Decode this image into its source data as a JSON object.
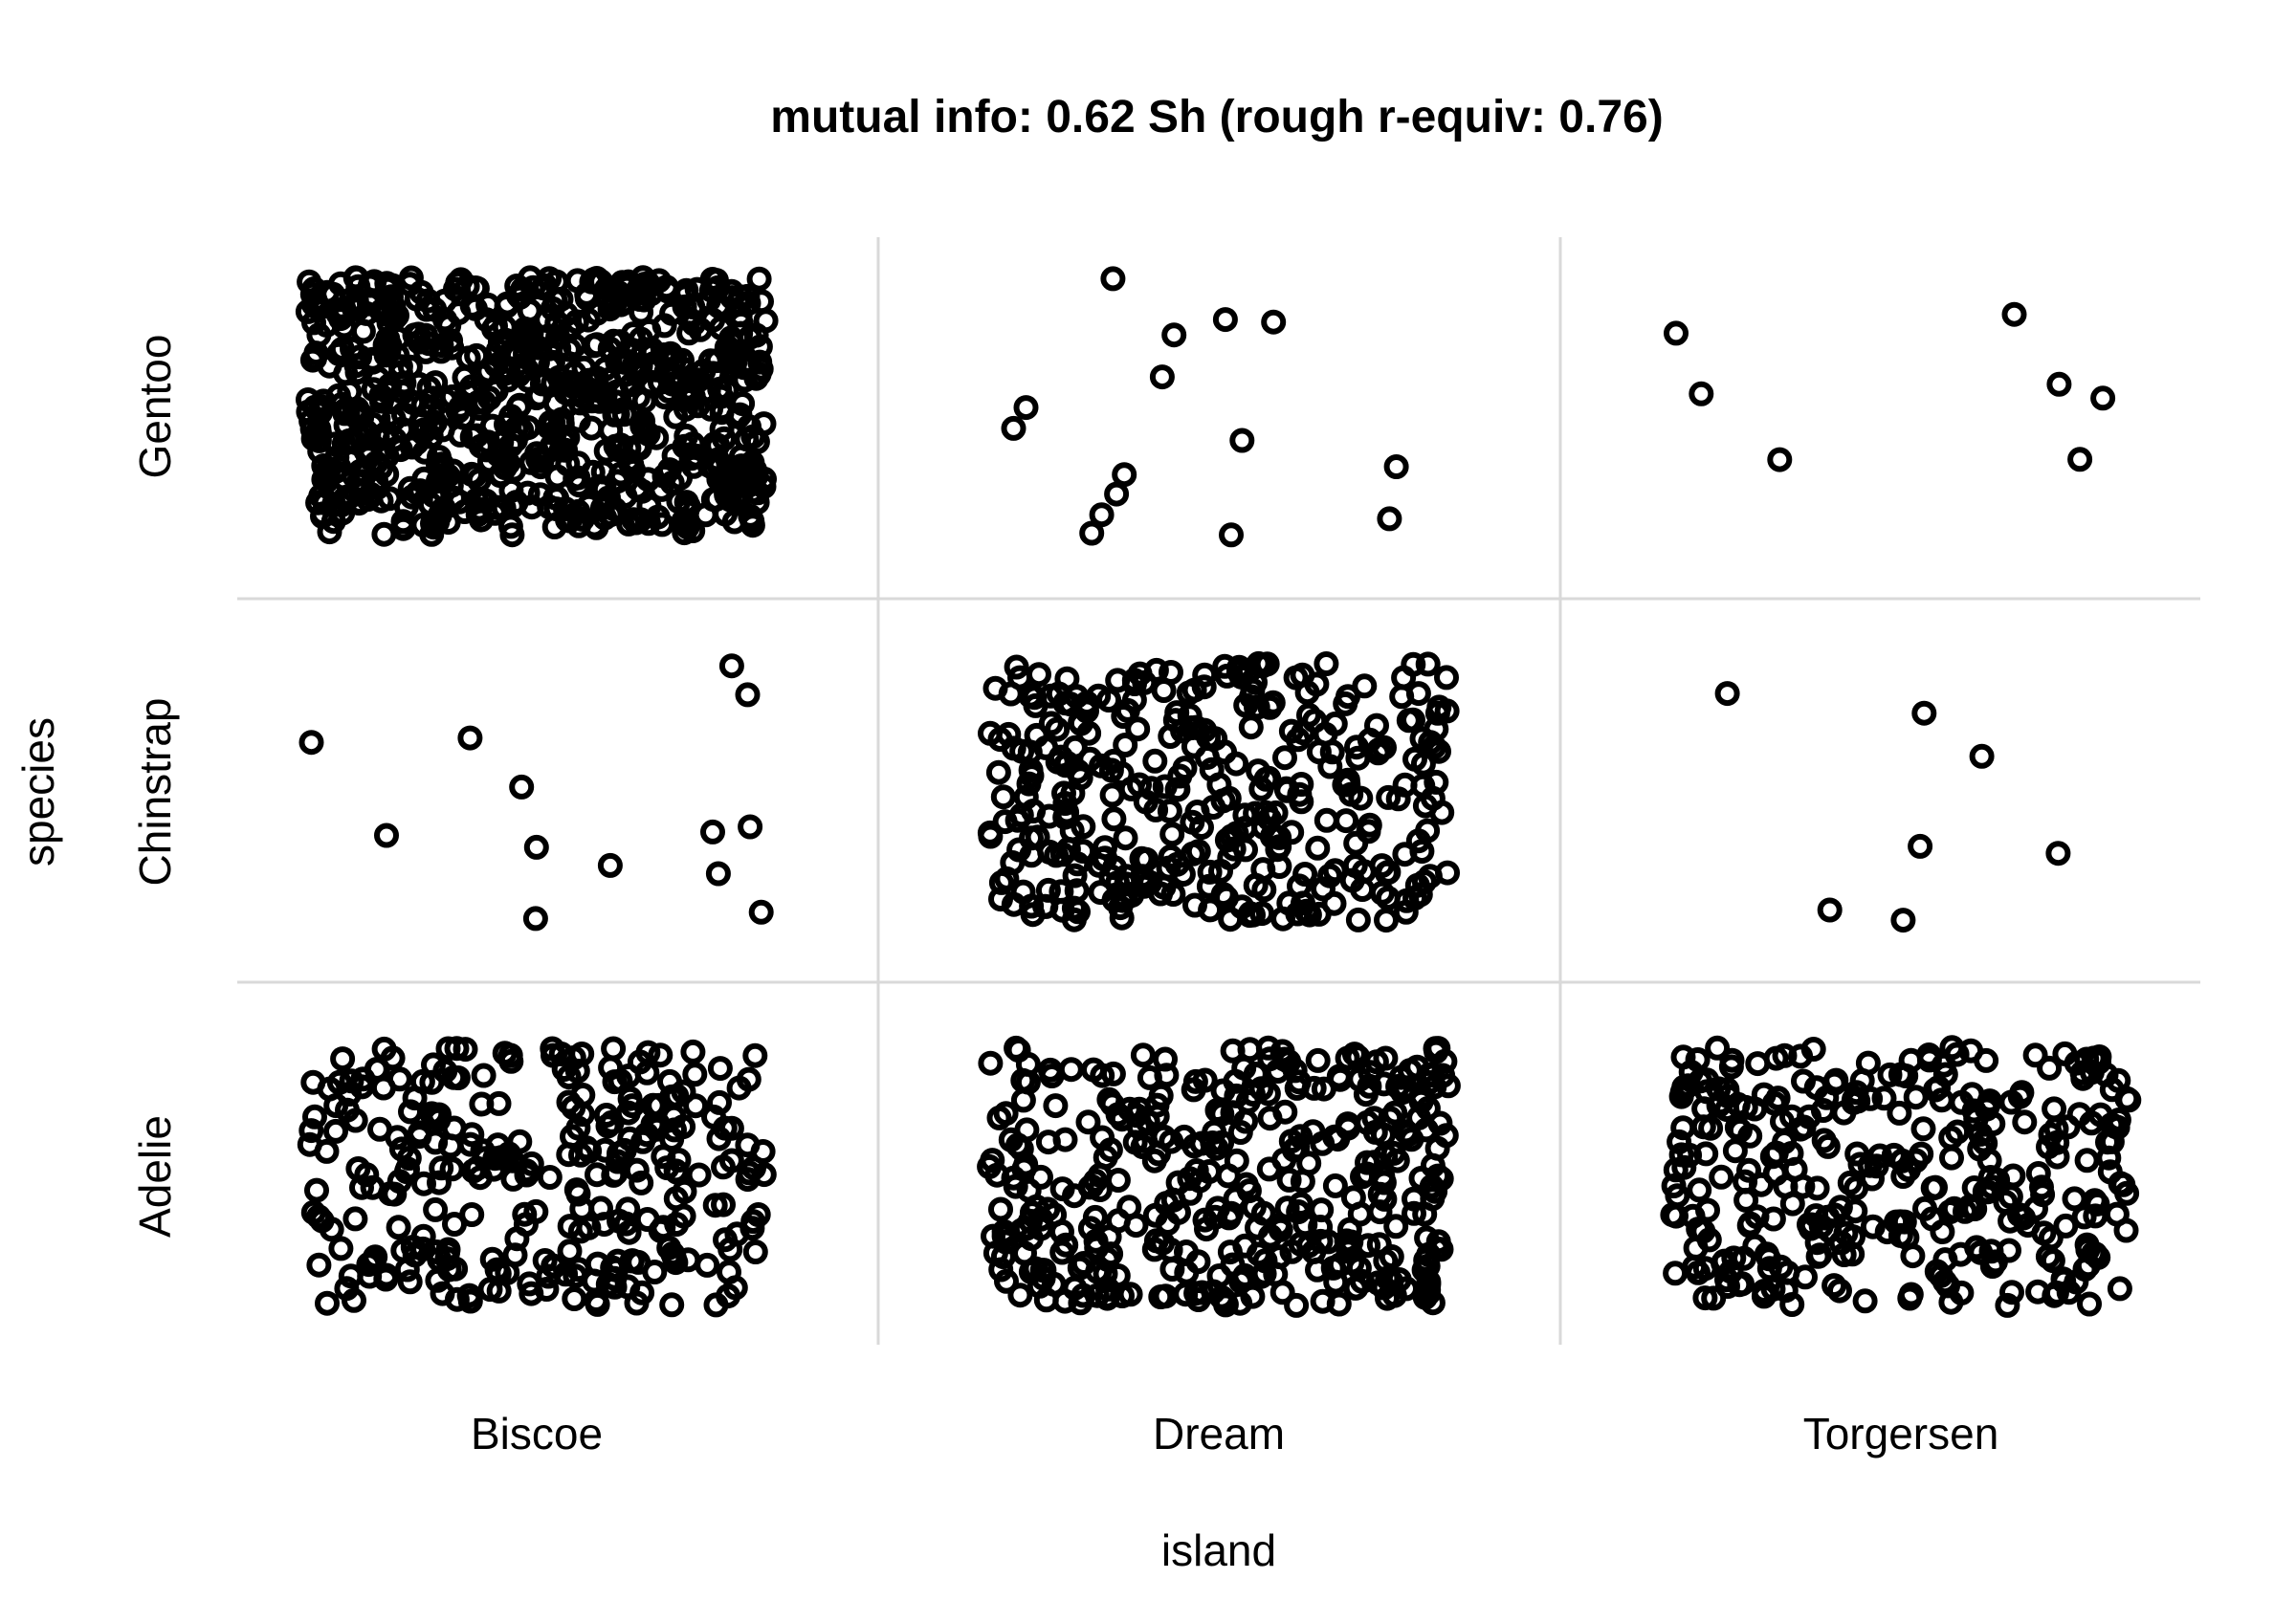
{
  "chart_data": {
    "type": "scatter",
    "subtype": "jittered-categorical",
    "title": "mutual info: 0.62 Sh  (rough r-equiv: 0.76)",
    "xlabel": "island",
    "ylabel": "species",
    "x_categories": [
      "Biscoe",
      "Dream",
      "Torgersen"
    ],
    "y_categories": [
      "Adelie",
      "Chinstrap",
      "Gentoo"
    ],
    "counts": [
      {
        "x": "Biscoe",
        "y": "Adelie",
        "n": 290
      },
      {
        "x": "Biscoe",
        "y": "Chinstrap",
        "n": 13
      },
      {
        "x": "Biscoe",
        "y": "Gentoo",
        "n": 720
      },
      {
        "x": "Dream",
        "y": "Adelie",
        "n": 370
      },
      {
        "x": "Dream",
        "y": "Chinstrap",
        "n": 340
      },
      {
        "x": "Dream",
        "y": "Gentoo",
        "n": 15
      },
      {
        "x": "Torgersen",
        "y": "Adelie",
        "n": 320
      },
      {
        "x": "Torgersen",
        "y": "Chinstrap",
        "n": 7
      },
      {
        "x": "Torgersen",
        "y": "Gentoo",
        "n": 7
      }
    ],
    "grid": true,
    "point_style": "open-circle",
    "colors": {
      "points": "#000000",
      "grid": "#d9d9d9",
      "background": "#ffffff"
    }
  }
}
